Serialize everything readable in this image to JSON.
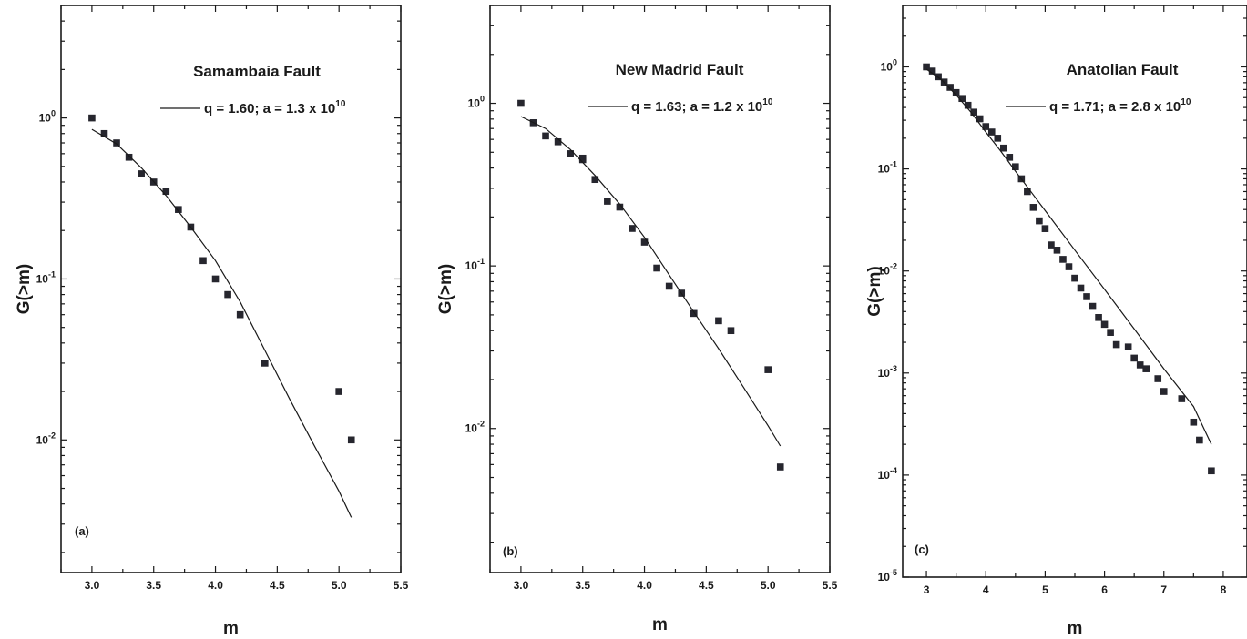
{
  "chart_data": [
    {
      "type": "scatter",
      "title": "Samambaia Fault",
      "panel_label": "(a)",
      "xlabel": "m",
      "ylabel": "G(>m)",
      "xlim": [
        2.75,
        5.5
      ],
      "ylim": [
        0.0015,
        5
      ],
      "yscale": "log",
      "x_ticks": [
        3.0,
        3.5,
        4.0,
        4.5,
        5.0,
        5.5
      ],
      "x_tick_labels": [
        "3.0",
        "3.5",
        "4.0",
        "4.5",
        "5.0",
        "5.5"
      ],
      "y_ticks": [
        0.01,
        0.1,
        1
      ],
      "y_tick_labels": [
        {
          "base": "10",
          "exp": "-2"
        },
        {
          "base": "10",
          "exp": "-1"
        },
        {
          "base": "10",
          "exp": "0"
        }
      ],
      "legend": {
        "prefix": "q = 1.60; a = 1.3 x 10",
        "exp": "10",
        "placement": "top-right"
      },
      "series": [
        {
          "kind": "points",
          "x": [
            3.0,
            3.1,
            3.2,
            3.3,
            3.4,
            3.5,
            3.6,
            3.7,
            3.8,
            3.9,
            4.0,
            4.1,
            4.2,
            4.4,
            5.0,
            5.1
          ],
          "y": [
            1.0,
            0.8,
            0.7,
            0.57,
            0.45,
            0.4,
            0.35,
            0.27,
            0.21,
            0.13,
            0.1,
            0.08,
            0.06,
            0.03,
            0.02,
            0.01
          ]
        },
        {
          "kind": "fit",
          "x": [
            3.0,
            3.2,
            3.4,
            3.6,
            3.8,
            4.0,
            4.2,
            4.4,
            4.6,
            4.8,
            5.0,
            5.1
          ],
          "y": [
            0.85,
            0.69,
            0.49,
            0.33,
            0.21,
            0.13,
            0.072,
            0.036,
            0.018,
            0.0092,
            0.0048,
            0.0033
          ]
        }
      ]
    },
    {
      "type": "scatter",
      "title": "New Madrid Fault",
      "panel_label": "(b)",
      "xlabel": "m",
      "ylabel": "G(>m)",
      "xlim": [
        2.75,
        5.5
      ],
      "ylim": [
        0.0013,
        4
      ],
      "yscale": "log",
      "x_ticks": [
        3.0,
        3.5,
        4.0,
        4.5,
        5.0,
        5.5
      ],
      "x_tick_labels": [
        "3.0",
        "3.5",
        "4.0",
        "4.5",
        "5.0",
        "5.5"
      ],
      "y_ticks": [
        0.01,
        0.1,
        1
      ],
      "y_tick_labels": [
        {
          "base": "10",
          "exp": "-2"
        },
        {
          "base": "10",
          "exp": "-1"
        },
        {
          "base": "10",
          "exp": "0"
        }
      ],
      "legend": {
        "prefix": "q = 1.63; a = 1.2 x 10",
        "exp": "10",
        "placement": "top-right"
      },
      "series": [
        {
          "kind": "points",
          "x": [
            3.0,
            3.1,
            3.2,
            3.3,
            3.4,
            3.5,
            3.5,
            3.6,
            3.7,
            3.8,
            3.9,
            4.0,
            4.1,
            4.2,
            4.3,
            4.4,
            4.6,
            4.7,
            5.0,
            5.1
          ],
          "y": [
            1.0,
            0.76,
            0.63,
            0.58,
            0.49,
            0.46,
            0.45,
            0.34,
            0.25,
            0.23,
            0.17,
            0.14,
            0.097,
            0.075,
            0.068,
            0.051,
            0.046,
            0.04,
            0.023,
            0.0058
          ]
        },
        {
          "kind": "fit",
          "x": [
            3.0,
            3.2,
            3.4,
            3.6,
            3.8,
            4.0,
            4.2,
            4.4,
            4.6,
            4.8,
            5.0,
            5.1
          ],
          "y": [
            0.83,
            0.7,
            0.52,
            0.36,
            0.24,
            0.15,
            0.088,
            0.052,
            0.031,
            0.018,
            0.0104,
            0.0078
          ]
        }
      ]
    },
    {
      "type": "scatter",
      "title": "Anatolian Fault",
      "panel_label": "(c)",
      "xlabel": "m",
      "ylabel": "G(>m)",
      "xlim": [
        2.6,
        8.4
      ],
      "ylim": [
        1e-05,
        4
      ],
      "yscale": "log",
      "x_ticks": [
        3,
        4,
        5,
        6,
        7,
        8
      ],
      "x_tick_labels": [
        "3",
        "4",
        "5",
        "6",
        "7",
        "8"
      ],
      "y_ticks": [
        1e-05,
        0.0001,
        0.001,
        0.01,
        0.1,
        1
      ],
      "y_tick_labels": [
        {
          "base": "10",
          "exp": "-5"
        },
        {
          "base": "10",
          "exp": "-4"
        },
        {
          "base": "10",
          "exp": "-3"
        },
        {
          "base": "10",
          "exp": "-2"
        },
        {
          "base": "10",
          "exp": "-1"
        },
        {
          "base": "10",
          "exp": "0"
        }
      ],
      "legend": {
        "prefix": "q = 1.71; a = 2.8 x 10",
        "exp": "10",
        "placement": "top-right"
      },
      "series": [
        {
          "kind": "points",
          "x": [
            3.0,
            3.1,
            3.2,
            3.3,
            3.4,
            3.5,
            3.6,
            3.7,
            3.8,
            3.9,
            4.0,
            4.1,
            4.2,
            4.3,
            4.4,
            4.5,
            4.6,
            4.7,
            4.8,
            4.9,
            5.0,
            5.1,
            5.2,
            5.3,
            5.4,
            5.5,
            5.6,
            5.7,
            5.8,
            5.9,
            6.0,
            6.1,
            6.2,
            6.4,
            6.5,
            6.6,
            6.7,
            6.9,
            7.0,
            7.3,
            7.5,
            7.6,
            7.8
          ],
          "y": [
            1.0,
            0.91,
            0.8,
            0.71,
            0.63,
            0.56,
            0.49,
            0.42,
            0.36,
            0.31,
            0.26,
            0.23,
            0.2,
            0.16,
            0.13,
            0.105,
            0.08,
            0.06,
            0.042,
            0.031,
            0.026,
            0.018,
            0.016,
            0.013,
            0.011,
            0.0085,
            0.0068,
            0.0056,
            0.0045,
            0.0035,
            0.003,
            0.0025,
            0.0019,
            0.0018,
            0.0014,
            0.0012,
            0.0011,
            0.00088,
            0.00066,
            0.00056,
            0.00033,
            0.00022,
            0.00011
          ]
        },
        {
          "kind": "fit",
          "x": [
            3.0,
            3.25,
            3.5,
            3.75,
            4.0,
            4.25,
            4.5,
            4.75,
            5.0,
            5.5,
            6.0,
            6.5,
            7.0,
            7.5,
            7.8
          ],
          "y": [
            0.95,
            0.75,
            0.53,
            0.36,
            0.23,
            0.15,
            0.095,
            0.061,
            0.039,
            0.016,
            0.0066,
            0.0027,
            0.0011,
            0.00047,
            0.0002
          ]
        }
      ]
    }
  ]
}
